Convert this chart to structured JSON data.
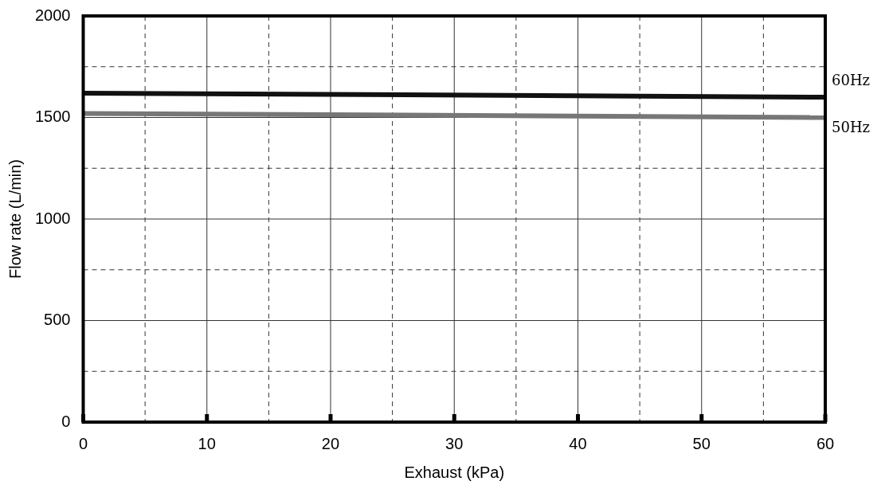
{
  "chart_data": {
    "type": "line",
    "xlabel": "Exhaust (kPa)",
    "ylabel": "Flow rate (L/min)",
    "x": [
      0,
      60
    ],
    "series": [
      {
        "name": "60Hz",
        "color": "#111111",
        "values": [
          1620,
          1600
        ]
      },
      {
        "name": "50Hz",
        "color": "#777777",
        "values": [
          1520,
          1500
        ]
      }
    ],
    "xlim": [
      0,
      60
    ],
    "xticks": [
      0,
      {
        "value": 5,
        "label": null
      },
      10,
      {
        "value": 15,
        "label": null
      },
      20,
      {
        "value": 25,
        "label": null
      },
      30,
      {
        "value": 35,
        "label": null
      },
      40,
      {
        "value": 45,
        "label": null
      },
      50,
      {
        "value": 55,
        "label": null
      },
      60
    ],
    "ylim": [
      0,
      2000
    ],
    "yticks": [
      0,
      {
        "value": 250,
        "label": null
      },
      500,
      {
        "value": 750,
        "label": null
      },
      1000,
      {
        "value": 1250,
        "label": null
      },
      1500,
      {
        "value": 1750,
        "label": null
      },
      2000
    ],
    "grid": true,
    "legend": false,
    "marker": "none",
    "line_style": "solid"
  }
}
